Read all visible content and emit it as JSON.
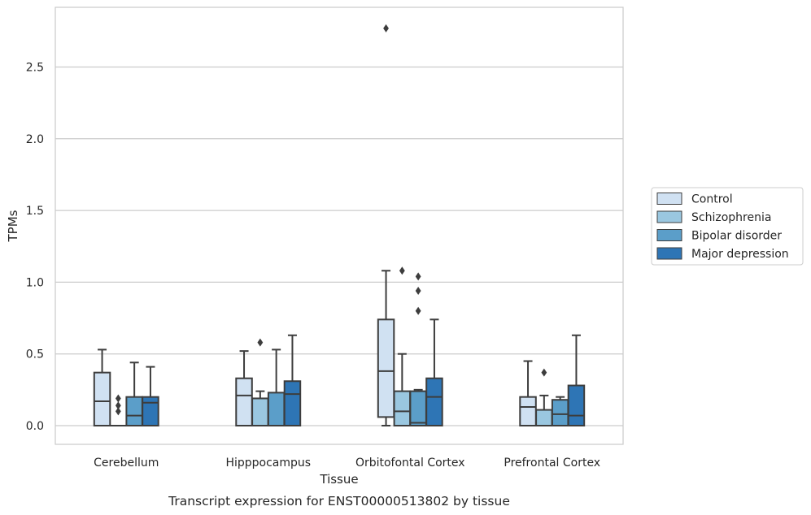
{
  "chart_data": {
    "type": "box",
    "caption": "Transcript expression for ENST00000513802 by tissue",
    "xlabel": "Tissue",
    "ylabel": "TPMs",
    "ylim": [
      -0.13,
      2.92
    ],
    "yticks": [
      0.0,
      0.5,
      1.0,
      1.5,
      2.0,
      2.5
    ],
    "ytick_labels": [
      "0.0",
      "0.5",
      "1.0",
      "1.5",
      "2.0",
      "2.5"
    ],
    "grid": "horizontal",
    "legend_placement": "right",
    "categories": [
      "Cerebellum",
      "Hipppocampus",
      "Orbitofontal Cortex",
      "Prefrontal Cortex"
    ],
    "series": [
      {
        "name": "Control",
        "color": "#d0e1f2",
        "boxes": [
          {
            "whislo": 0.0,
            "q1": 0.0,
            "med": 0.17,
            "q3": 0.37,
            "whishi": 0.53,
            "fliers": []
          },
          {
            "whislo": 0.0,
            "q1": 0.0,
            "med": 0.21,
            "q3": 0.33,
            "whishi": 0.52,
            "fliers": []
          },
          {
            "whislo": 0.0,
            "q1": 0.06,
            "med": 0.38,
            "q3": 0.74,
            "whishi": 1.08,
            "fliers": [
              2.77
            ]
          },
          {
            "whislo": 0.0,
            "q1": 0.0,
            "med": 0.13,
            "q3": 0.2,
            "whishi": 0.45,
            "fliers": []
          }
        ]
      },
      {
        "name": "Schizophrenia",
        "color": "#9ac7e0",
        "boxes": [
          {
            "whislo": 0.0,
            "q1": 0.0,
            "med": 0.0,
            "q3": 0.0,
            "whishi": 0.0,
            "fliers": [
              0.1,
              0.14,
              0.19
            ]
          },
          {
            "whislo": 0.0,
            "q1": 0.0,
            "med": 0.19,
            "q3": 0.19,
            "whishi": 0.24,
            "fliers": [
              0.58
            ]
          },
          {
            "whislo": 0.0,
            "q1": 0.0,
            "med": 0.1,
            "q3": 0.24,
            "whishi": 0.5,
            "fliers": [
              1.08
            ]
          },
          {
            "whislo": 0.0,
            "q1": 0.0,
            "med": 0.0,
            "q3": 0.11,
            "whishi": 0.21,
            "fliers": [
              0.37
            ]
          }
        ]
      },
      {
        "name": "Bipolar disorder",
        "color": "#5b9ec9",
        "boxes": [
          {
            "whislo": 0.0,
            "q1": 0.0,
            "med": 0.07,
            "q3": 0.2,
            "whishi": 0.44,
            "fliers": []
          },
          {
            "whislo": 0.0,
            "q1": 0.0,
            "med": 0.0,
            "q3": 0.23,
            "whishi": 0.53,
            "fliers": []
          },
          {
            "whislo": 0.0,
            "q1": 0.0,
            "med": 0.02,
            "q3": 0.24,
            "whishi": 0.25,
            "fliers": [
              0.8,
              0.94,
              1.04
            ]
          },
          {
            "whislo": 0.0,
            "q1": 0.0,
            "med": 0.08,
            "q3": 0.18,
            "whishi": 0.2,
            "fliers": []
          }
        ]
      },
      {
        "name": "Major depression",
        "color": "#2e75b5",
        "boxes": [
          {
            "whislo": 0.0,
            "q1": 0.0,
            "med": 0.16,
            "q3": 0.2,
            "whishi": 0.41,
            "fliers": []
          },
          {
            "whislo": 0.0,
            "q1": 0.0,
            "med": 0.22,
            "q3": 0.31,
            "whishi": 0.63,
            "fliers": []
          },
          {
            "whislo": 0.0,
            "q1": 0.0,
            "med": 0.2,
            "q3": 0.33,
            "whishi": 0.74,
            "fliers": []
          },
          {
            "whislo": 0.0,
            "q1": 0.0,
            "med": 0.07,
            "q3": 0.28,
            "whishi": 0.63,
            "fliers": []
          }
        ]
      }
    ],
    "colors": {
      "grid": "#cccccc",
      "frame": "#cccccc",
      "line": "#3d3d3d",
      "text": "#262626"
    }
  }
}
